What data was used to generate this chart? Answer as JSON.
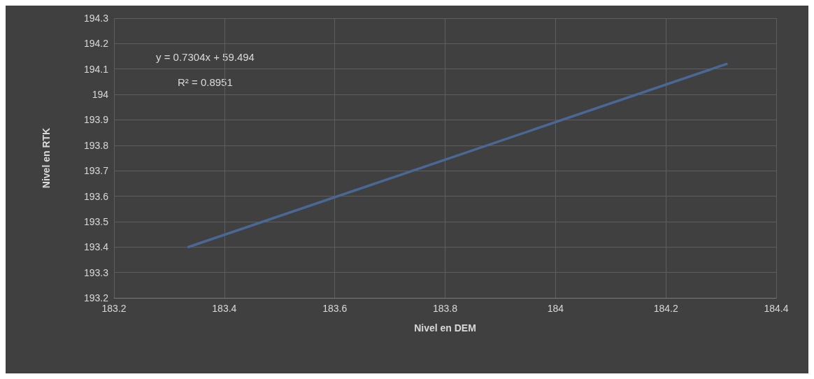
{
  "chart_data": {
    "type": "line",
    "xlabel": "Nivel en DEM",
    "ylabel": "Nivel en RTK",
    "x": [
      183.335,
      184.31
    ],
    "series": [
      {
        "color": "#4a6796",
        "values": [
          193.4,
          194.12
        ]
      }
    ],
    "xlim": [
      183.2,
      184.4
    ],
    "xticks": [
      183.2,
      183.4,
      183.6,
      183.8,
      184,
      184.2,
      184.4
    ],
    "ylim": [
      193.2,
      194.3
    ],
    "yticks": [
      193.2,
      193.3,
      193.4,
      193.5,
      193.6,
      193.7,
      193.8,
      193.9,
      194,
      194.1,
      194.2,
      194.3
    ],
    "grid": true,
    "marker": "none",
    "line_style": "solid",
    "annotations": [
      "y = 0.7304x + 59.494",
      "R² = 0.8951"
    ]
  }
}
